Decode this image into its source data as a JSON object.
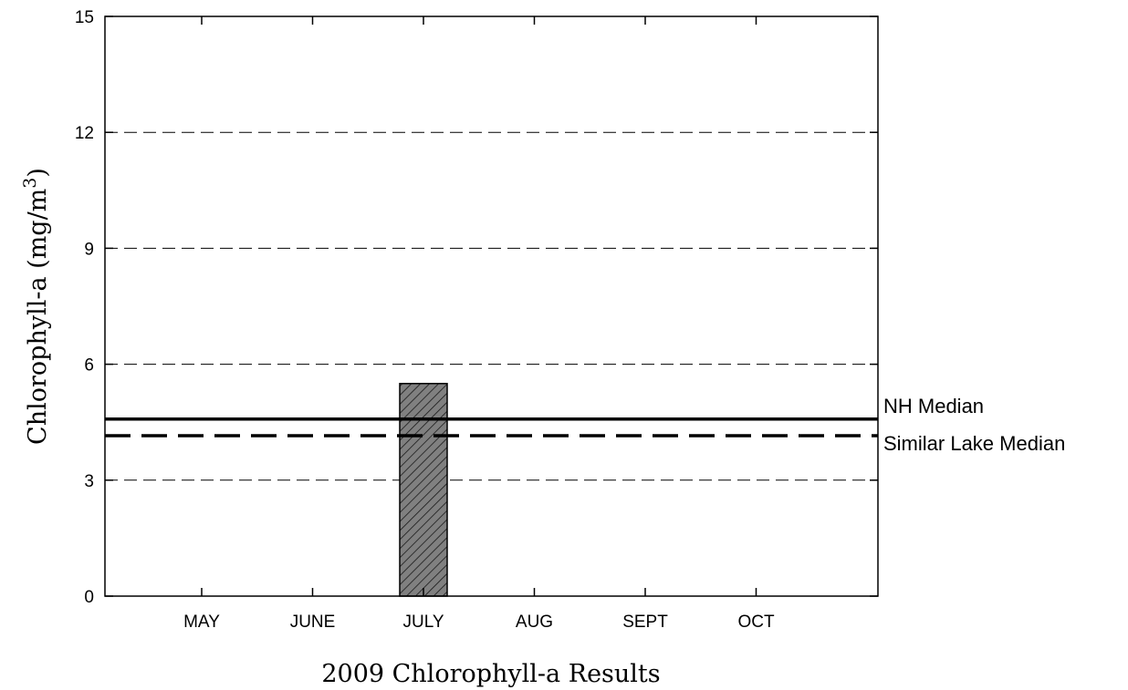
{
  "chart_data": {
    "type": "bar",
    "xlabel": "2009 Chlorophyll-a Results",
    "ylabel": "Chlorophyll-a (mg/m",
    "ylabel_superscript": "3",
    "ylabel_close": ")",
    "ylim": [
      0,
      15
    ],
    "yticks": [
      "0",
      "3",
      "6",
      "9",
      "12",
      "15"
    ],
    "grid": "dashed horizontal",
    "categories": [
      "MAY",
      "JUNE",
      "JULY",
      "AUG",
      "SEPT",
      "OCT"
    ],
    "values": [
      null,
      null,
      5.5,
      null,
      null,
      null
    ],
    "bar_fill": "#808080",
    "reference_lines": [
      {
        "label": "NH Median",
        "value": 4.58,
        "style": "solid"
      },
      {
        "label": "Similar Lake Median",
        "value": 4.15,
        "style": "dashed"
      }
    ]
  }
}
